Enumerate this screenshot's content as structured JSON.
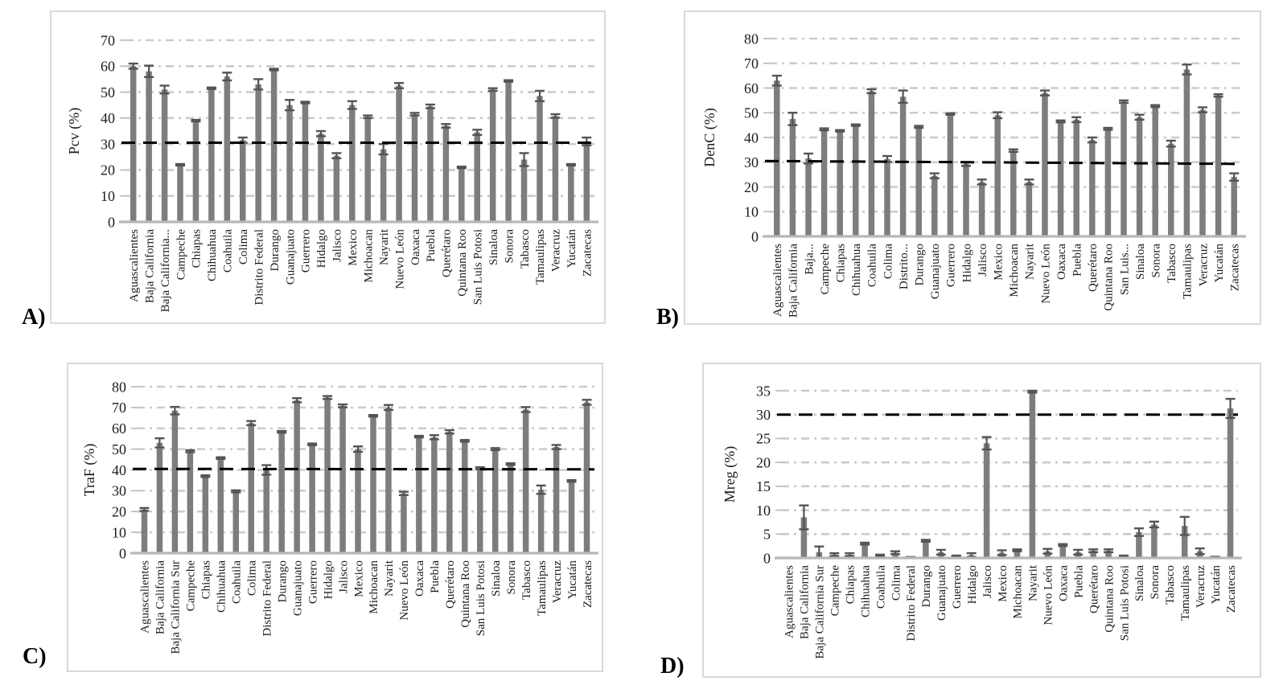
{
  "figure": {
    "description": "Four bar-chart panels of Mexican states with error bars and dashed reference lines",
    "panels": [
      {
        "letter": "A)"
      },
      {
        "letter": "B)"
      },
      {
        "letter": "C)"
      },
      {
        "letter": "D)"
      }
    ]
  },
  "colors": {
    "bar": "#7d7d7d",
    "error_bar": "#545454",
    "gridline": "#cbcbcb",
    "axis_line": "#b8b8b8",
    "reference_line": "#000000",
    "panel_border": "#d9d9d9",
    "text": "#1c1c1c"
  },
  "chart_data": [
    {
      "type": "bar",
      "panel_label": "A)",
      "ylabel": "Pcv (%)",
      "ylim": [
        0,
        70
      ],
      "yticks": [
        0,
        10,
        20,
        30,
        40,
        50,
        60,
        70
      ],
      "grid": "horizontal dash-dot",
      "legend": "none",
      "reference_line": {
        "style": "dashed",
        "y_start": 30.5,
        "y_end": 30.5
      },
      "categories": [
        "Aguascalientes",
        "Baja California",
        "Baja California...",
        "Campeche",
        "Chiapas",
        "Chihuahua",
        "Coahuila",
        "Colima",
        "Distrito Federal",
        "Durango",
        "Guanajuato",
        "Guerrero",
        "Hidalgo",
        "Jalisco",
        "Mexico",
        "Michoacan",
        "Nayarit",
        "Nuevo León",
        "Oaxaca",
        "Puebla",
        "Querétaro",
        "Quintana Roo",
        "San Luis Potosi",
        "Sinaloa",
        "Sonora",
        "Tabasco",
        "Tamaulipas",
        "Veracruz",
        "Yucatán",
        "Zacatecas"
      ],
      "values": [
        60,
        58,
        51,
        22,
        39,
        51.5,
        56,
        31.5,
        53,
        58.7,
        45,
        46,
        34,
        25.5,
        45,
        40.5,
        28,
        52.5,
        41.5,
        44.5,
        37,
        21,
        34.5,
        51,
        54.3,
        24,
        48.5,
        40.8,
        22,
        31
      ],
      "errors": [
        1,
        2.2,
        1.5,
        0.3,
        0.3,
        0.3,
        1.5,
        1,
        2,
        0.3,
        2,
        0.3,
        1,
        1,
        1.5,
        0.5,
        2,
        1,
        0.5,
        0.7,
        0.7,
        0.3,
        1,
        0.5,
        0.3,
        2.5,
        2,
        0.7,
        0.3,
        1.5
      ]
    },
    {
      "type": "bar",
      "panel_label": "B)",
      "ylabel": "DenC (%)",
      "ylim": [
        0,
        80
      ],
      "yticks": [
        0,
        10,
        20,
        30,
        40,
        50,
        60,
        70,
        80
      ],
      "grid": "horizontal dash-dot",
      "legend": "none",
      "reference_line": {
        "style": "dashed",
        "y_start": 30.5,
        "y_end": 29.3
      },
      "categories": [
        "Aguascalientes",
        "Baja California",
        "Baja...",
        "Campeche",
        "Chiapas",
        "Chihuahua",
        "Coahuila",
        "Colima",
        "Distrito...",
        "Durango",
        "Guanajuato",
        "Guerrero",
        "Hidalgo",
        "Jalisco",
        "Mexico",
        "Michoacan",
        "Nayarit",
        "Nuevo León",
        "Oaxaca",
        "Puebla",
        "Querétaro",
        "Quintana Roo",
        "San Luis...",
        "Sinaloa",
        "Sonora",
        "Tabasco",
        "Tamaulipas",
        "Veracruz",
        "Yucatán",
        "Zacatecas"
      ],
      "values": [
        63,
        47.5,
        31.5,
        43.3,
        42.7,
        45,
        58.7,
        31.3,
        56.5,
        44.3,
        24.5,
        49.5,
        29.3,
        22,
        49,
        34.7,
        22,
        58,
        46.5,
        47.2,
        39,
        43.5,
        54.5,
        48.2,
        52.7,
        37.5,
        67.5,
        51.2,
        57,
        24
      ],
      "errors": [
        2,
        2.5,
        2,
        0.4,
        0.3,
        0.3,
        0.8,
        1.2,
        2.5,
        0.4,
        1,
        0.3,
        0.8,
        1,
        1.2,
        0.5,
        1,
        1,
        0.4,
        1,
        1,
        0.4,
        0.5,
        1,
        0.4,
        1.2,
        2,
        1,
        0.5,
        1.5
      ]
    },
    {
      "type": "bar",
      "panel_label": "C)",
      "ylabel": "TraF (%)",
      "ylim": [
        0,
        80
      ],
      "yticks": [
        0,
        10,
        20,
        30,
        40,
        50,
        60,
        70,
        80
      ],
      "grid": "horizontal dash-dot",
      "legend": "none",
      "reference_line": {
        "style": "dashed",
        "y_start": 40.5,
        "y_end": 40.3
      },
      "categories": [
        "Aguascalientes",
        "Baja California",
        "Baja California Sur",
        "Campeche",
        "Chiapas",
        "Chihuahua",
        "Coahuila",
        "Colima",
        "Distrito Federal",
        "Durango",
        "Guanajuato",
        "Guerrero",
        "Hidalgo",
        "Jalisco",
        "Mexico",
        "Michoacan",
        "Nayarit",
        "Nuevo León",
        "Oaxaca",
        "Puebla",
        "Querétaro",
        "Quintana Roo",
        "San Luis Potosi",
        "Sinaloa",
        "Sonora",
        "Tabasco",
        "Tamaulipas",
        "Veracruz",
        "Yucatán",
        "Zacatecas"
      ],
      "values": [
        21,
        53,
        68.5,
        49,
        37,
        45.7,
        29.7,
        62.5,
        40,
        58.3,
        73.5,
        52.3,
        74.8,
        70.8,
        50,
        66,
        70,
        28.7,
        56,
        55.7,
        58.3,
        54,
        40.8,
        50,
        42.8,
        69,
        30.5,
        51,
        34.7,
        72.5
      ],
      "errors": [
        0.7,
        2.2,
        1.8,
        0.5,
        0.4,
        0.4,
        0.5,
        1,
        2.3,
        0.4,
        1,
        0.4,
        0.7,
        0.7,
        1.3,
        0.4,
        1.2,
        0.8,
        0.4,
        1,
        0.8,
        0.4,
        0.5,
        0.5,
        0.4,
        1.2,
        2,
        1,
        0.4,
        1.2
      ]
    },
    {
      "type": "bar",
      "panel_label": "D)",
      "ylabel": "Mreg (%)",
      "ylim": [
        0,
        35
      ],
      "yticks": [
        0,
        5,
        10,
        15,
        20,
        25,
        30,
        35
      ],
      "grid": "horizontal dash-dot",
      "legend": "none",
      "reference_line": {
        "style": "dashed",
        "y_start": 30,
        "y_end": 30
      },
      "categories": [
        "Aguascalientes",
        "Baja California",
        "Baja California Sur",
        "Campeche",
        "Chiapas",
        "Chihuahua",
        "Coahuila",
        "Colima",
        "Distrito Federal",
        "Durango",
        "Guanajuato",
        "Guerrero",
        "Hidalgo",
        "Jalisco",
        "Mexico",
        "Michoacan",
        "Nayarit",
        "Nuevo León",
        "Oaxaca",
        "Puebla",
        "Querétaro",
        "Quintana Roo",
        "San Luis Potosi",
        "Sinaloa",
        "Sonora",
        "Tabasco",
        "Tamaulipas",
        "Veracruz",
        "Yucatán",
        "Zacatecas"
      ],
      "values": [
        0,
        8.5,
        1.2,
        0.7,
        0.7,
        3,
        0.5,
        1.1,
        0.15,
        3.6,
        1.2,
        0.4,
        0.6,
        24,
        1.1,
        1.6,
        34.8,
        1.4,
        2.7,
        1.2,
        1.5,
        1.5,
        0.4,
        5.4,
        7,
        0,
        6.7,
        1.4,
        0.2,
        31.3
      ],
      "errors": [
        0,
        2.5,
        1.2,
        0.3,
        0.3,
        0.2,
        0.2,
        0.3,
        0.05,
        0.2,
        0.5,
        0.1,
        0.4,
        1.3,
        0.5,
        0.2,
        0.2,
        0.5,
        0.2,
        0.5,
        0.3,
        0.3,
        0.1,
        0.8,
        0.6,
        0,
        1.9,
        0.6,
        0.05,
        2
      ]
    }
  ]
}
